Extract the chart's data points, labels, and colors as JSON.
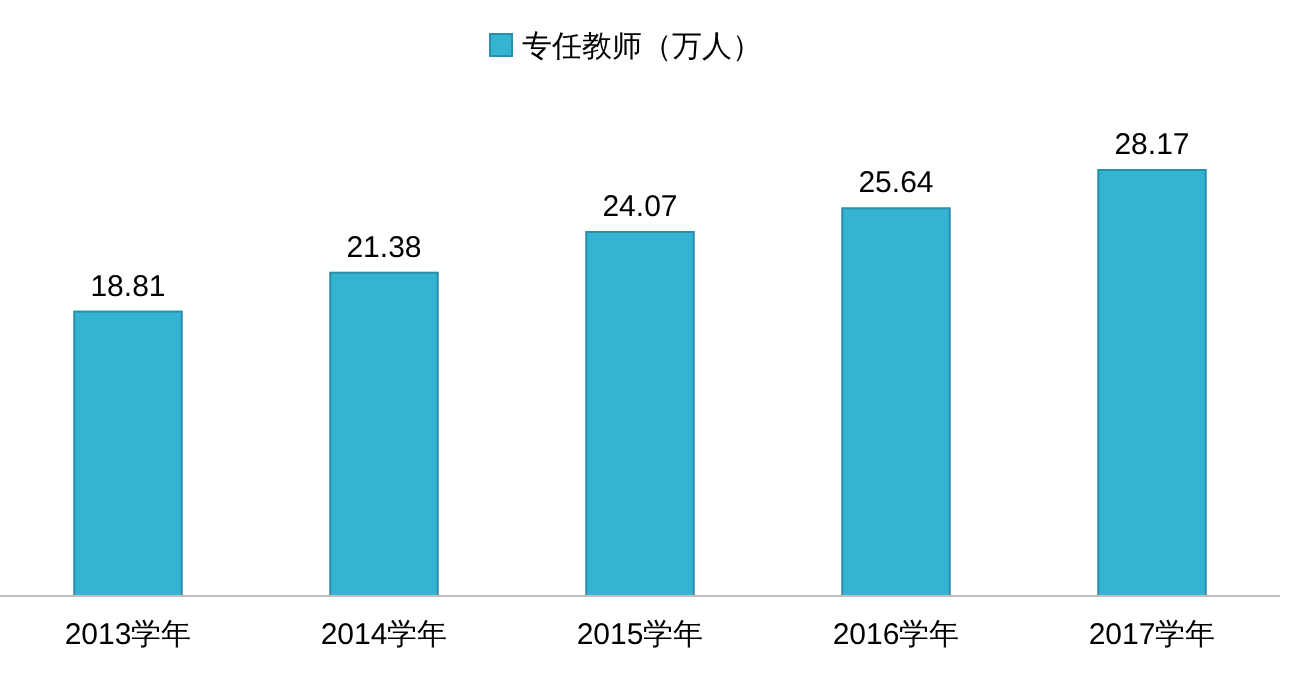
{
  "chart_data": {
    "type": "bar",
    "categories": [
      "2013学年",
      "2014学年",
      "2015学年",
      "2016学年",
      "2017学年"
    ],
    "series": [
      {
        "name": "专任教师（万人）",
        "color": "#35b3d3",
        "values": [
          18.81,
          21.38,
          24.07,
          25.64,
          28.17
        ]
      }
    ],
    "data_labels": true,
    "legend": "top",
    "grid": false,
    "tick_labels": "x"
  }
}
